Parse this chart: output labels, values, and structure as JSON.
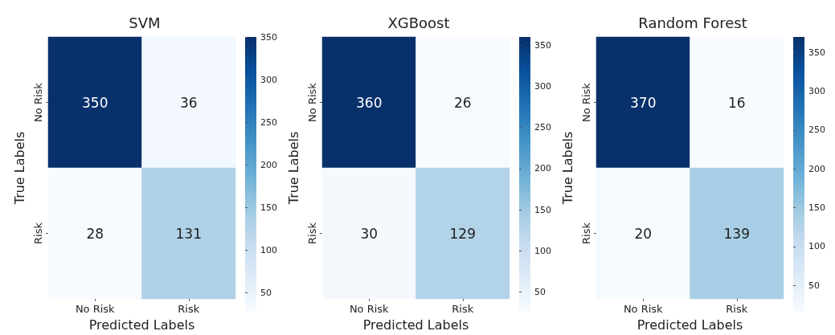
{
  "chart_data": [
    {
      "type": "heatmap",
      "title": "SVM",
      "xlabel": "Predicted Labels",
      "ylabel": "True Labels",
      "categories": [
        "No Risk",
        "Risk"
      ],
      "y_categories": [
        "No Risk",
        "Risk"
      ],
      "cells": [
        [
          350,
          36
        ],
        [
          28,
          131
        ]
      ],
      "clim": [
        28,
        350
      ],
      "cticks": [
        50,
        100,
        150,
        200,
        250,
        300,
        350
      ],
      "data_labels": true
    },
    {
      "type": "heatmap",
      "title": "XGBoost",
      "xlabel": "Predicted Labels",
      "ylabel": "True Labels",
      "categories": [
        "No Risk",
        "Risk"
      ],
      "y_categories": [
        "No Risk",
        "Risk"
      ],
      "cells": [
        [
          360,
          26
        ],
        [
          30,
          129
        ]
      ],
      "clim": [
        26,
        360
      ],
      "cticks": [
        50,
        100,
        150,
        200,
        250,
        300,
        350
      ],
      "data_labels": true
    },
    {
      "type": "heatmap",
      "title": "Random Forest",
      "xlabel": "Predicted Labels",
      "ylabel": "True Labels",
      "categories": [
        "No Risk",
        "Risk"
      ],
      "y_categories": [
        "No Risk",
        "Risk"
      ],
      "cells": [
        [
          370,
          16
        ],
        [
          20,
          139
        ]
      ],
      "clim": [
        16,
        370
      ],
      "cticks": [
        50,
        100,
        150,
        200,
        250,
        300,
        350
      ],
      "data_labels": true
    }
  ]
}
